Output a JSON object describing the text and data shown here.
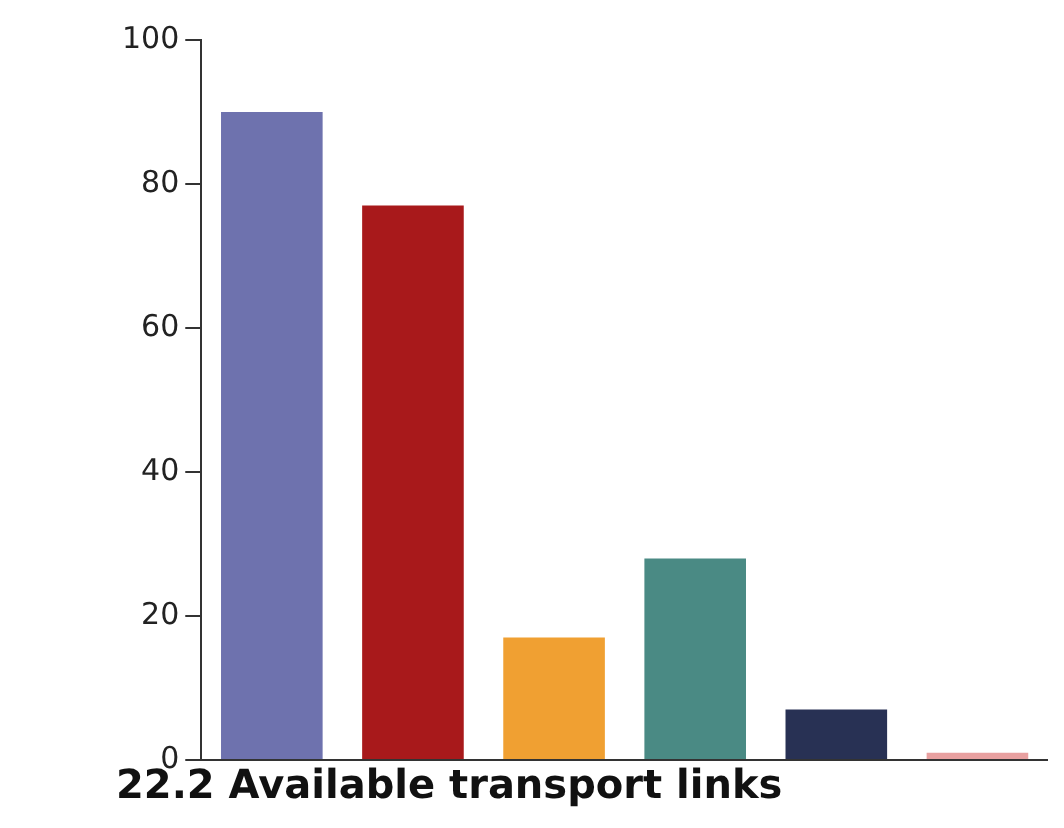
{
  "chart_data": {
    "type": "bar",
    "title": "22.2 Available transport links",
    "categories": [
      null,
      null,
      null,
      null,
      null,
      null
    ],
    "values": [
      90,
      77,
      17,
      28,
      7,
      1
    ],
    "colors": [
      "#6e72ae",
      "#a8191b",
      "#f0a032",
      "#4a8a84",
      "#283154",
      "#e8a0a0"
    ],
    "ylim": [
      0,
      100
    ],
    "yticks": [
      0,
      20,
      40,
      60,
      80,
      100
    ],
    "grid": false,
    "legend": false
  }
}
